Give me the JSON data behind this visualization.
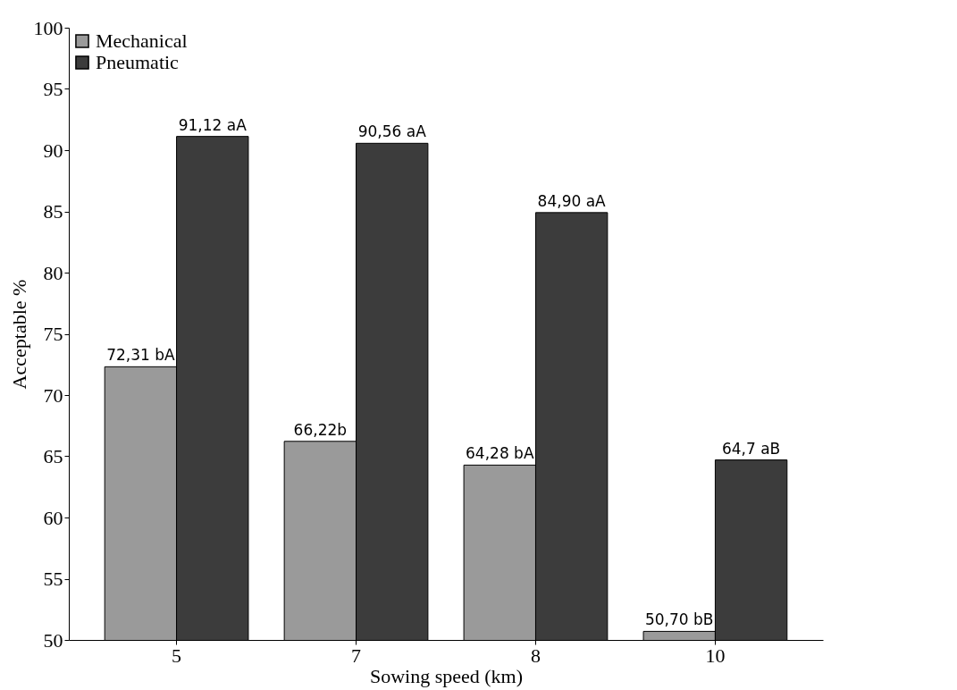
{
  "chart_data": {
    "type": "bar",
    "xlabel": "Sowing speed (km)",
    "ylabel": "Acceptable %",
    "categories": [
      "5",
      "7",
      "8",
      "10"
    ],
    "series": [
      {
        "name": "Mechanical",
        "color": "#9a9a9a",
        "values": [
          72.31,
          66.22,
          64.28,
          50.7
        ],
        "value_labels": [
          "72,31 bA",
          "66,22b",
          "64,28 bA",
          "50,70 bB"
        ]
      },
      {
        "name": "Pneumatic",
        "color": "#3c3c3c",
        "values": [
          91.12,
          90.56,
          84.9,
          64.7
        ],
        "value_labels": [
          "91,12 aA",
          "90,56 aA",
          "84,90 aA",
          "64,7 aB"
        ]
      }
    ],
    "ylim": [
      50,
      100
    ],
    "yticks": [
      50,
      55,
      60,
      65,
      70,
      75,
      80,
      85,
      90,
      95,
      100
    ],
    "grid": false,
    "legend": "top left"
  }
}
